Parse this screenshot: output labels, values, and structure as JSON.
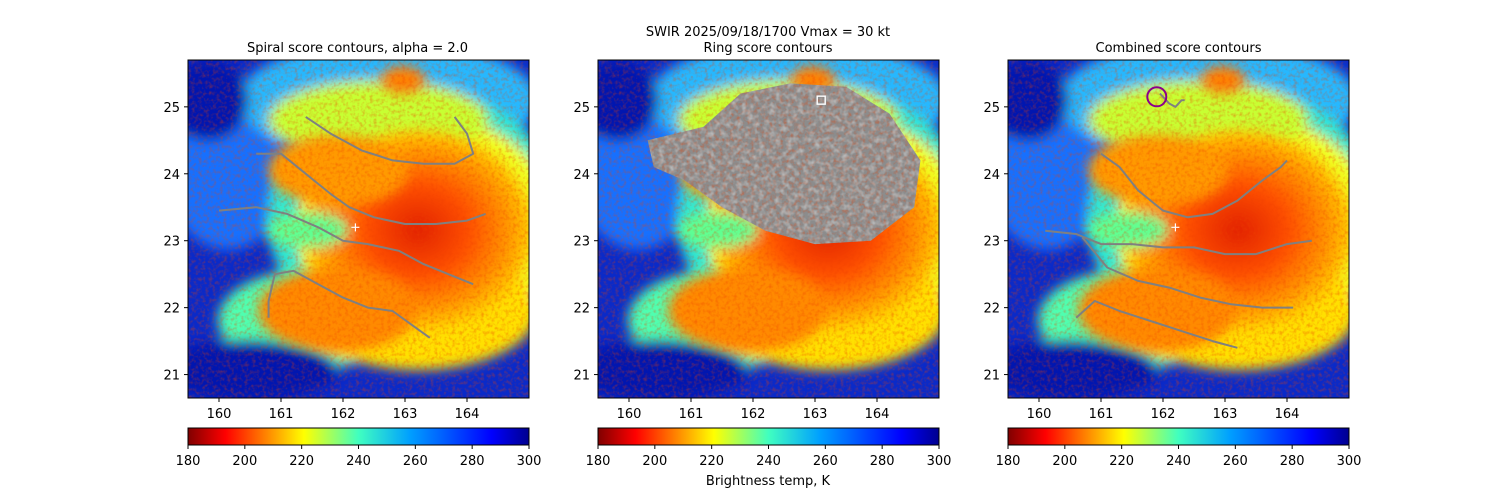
{
  "figure": {
    "suptitle": "SWIR  2025/09/18/1700    Vmax = 30 kt",
    "colorbar_label": "Brightness temp, K"
  },
  "colors": {
    "contour": "#808080",
    "marker": "#ffffff",
    "best_center_circle": "#8b008b",
    "ring_box": "#ffffff"
  },
  "chart_data": [
    {
      "type": "heatmap",
      "title": "Spiral score contours, alpha =  2.0",
      "xlim": [
        159.5,
        165.0
      ],
      "ylim": [
        20.65,
        25.7
      ],
      "xticks": [
        160,
        161,
        162,
        163,
        164
      ],
      "yticks": [
        21,
        22,
        23,
        24,
        25
      ],
      "colorscale": "jet_r",
      "colorbar": {
        "range": [
          180,
          300
        ],
        "ticks": [
          180,
          200,
          220,
          240,
          260,
          280,
          300
        ]
      },
      "markers": [
        {
          "symbol": "+",
          "x": 162.2,
          "y": 23.2
        }
      ],
      "contours": [
        {
          "name": "spiral-arm-1",
          "points": [
            [
              161.4,
              24.85
            ],
            [
              161.8,
              24.6
            ],
            [
              162.3,
              24.35
            ],
            [
              162.8,
              24.2
            ],
            [
              163.3,
              24.15
            ],
            [
              163.8,
              24.15
            ],
            [
              164.1,
              24.3
            ],
            [
              164.0,
              24.6
            ],
            [
              163.8,
              24.85
            ]
          ]
        },
        {
          "name": "spiral-arm-2",
          "points": [
            [
              160.6,
              24.3
            ],
            [
              161.0,
              24.3
            ],
            [
              161.4,
              24.0
            ],
            [
              161.8,
              23.7
            ],
            [
              162.1,
              23.5
            ],
            [
              162.5,
              23.35
            ],
            [
              163.0,
              23.25
            ],
            [
              163.5,
              23.25
            ],
            [
              164.0,
              23.3
            ],
            [
              164.3,
              23.4
            ]
          ]
        },
        {
          "name": "spiral-arm-3",
          "points": [
            [
              160.0,
              23.45
            ],
            [
              160.6,
              23.5
            ],
            [
              161.1,
              23.4
            ],
            [
              161.6,
              23.2
            ],
            [
              162.0,
              23.0
            ],
            [
              162.4,
              22.95
            ],
            [
              162.9,
              22.85
            ],
            [
              163.3,
              22.65
            ],
            [
              163.7,
              22.5
            ],
            [
              164.1,
              22.35
            ]
          ]
        },
        {
          "name": "spiral-arm-4",
          "points": [
            [
              160.8,
              21.85
            ],
            [
              160.8,
              22.1
            ],
            [
              160.9,
              22.5
            ],
            [
              161.2,
              22.55
            ],
            [
              161.6,
              22.35
            ],
            [
              162.0,
              22.15
            ],
            [
              162.4,
              22.0
            ],
            [
              162.8,
              21.95
            ],
            [
              163.1,
              21.75
            ],
            [
              163.4,
              21.55
            ]
          ]
        }
      ]
    },
    {
      "type": "heatmap",
      "title": "Ring score contours",
      "xlim": [
        159.5,
        165.0
      ],
      "ylim": [
        20.65,
        25.7
      ],
      "xticks": [
        160,
        161,
        162,
        163,
        164
      ],
      "yticks": [
        21,
        22,
        23,
        24,
        25
      ],
      "colorscale": "jet_r",
      "colorbar": {
        "range": [
          180,
          300
        ],
        "ticks": [
          180,
          200,
          220,
          240,
          260,
          280,
          300
        ]
      },
      "markers": [
        {
          "symbol": "square",
          "x": 163.1,
          "y": 25.1
        }
      ],
      "ring_region": {
        "points": [
          [
            160.3,
            24.5
          ],
          [
            161.2,
            24.7
          ],
          [
            161.8,
            25.2
          ],
          [
            162.6,
            25.35
          ],
          [
            163.5,
            25.3
          ],
          [
            164.2,
            24.9
          ],
          [
            164.7,
            24.2
          ],
          [
            164.6,
            23.5
          ],
          [
            163.9,
            23.0
          ],
          [
            163.0,
            22.95
          ],
          [
            162.2,
            23.15
          ],
          [
            161.5,
            23.5
          ],
          [
            160.9,
            23.9
          ],
          [
            160.4,
            24.1
          ]
        ]
      }
    },
    {
      "type": "heatmap",
      "title": "Combined score contours",
      "xlim": [
        159.5,
        165.0
      ],
      "ylim": [
        20.65,
        25.7
      ],
      "xticks": [
        160,
        161,
        162,
        163,
        164
      ],
      "yticks": [
        21,
        22,
        23,
        24,
        25
      ],
      "colorscale": "jet_r",
      "colorbar": {
        "range": [
          180,
          300
        ],
        "ticks": [
          180,
          200,
          220,
          240,
          260,
          280,
          300
        ]
      },
      "markers": [
        {
          "symbol": "+",
          "x": 162.2,
          "y": 23.2
        },
        {
          "symbol": "circle",
          "x": 161.9,
          "y": 25.15
        }
      ],
      "contours": [
        {
          "name": "spiral-arm-1",
          "points": [
            [
              161.0,
              24.3
            ],
            [
              161.3,
              24.1
            ],
            [
              161.6,
              23.75
            ],
            [
              162.0,
              23.45
            ],
            [
              162.4,
              23.35
            ],
            [
              162.8,
              23.4
            ],
            [
              163.2,
              23.6
            ],
            [
              163.6,
              23.9
            ],
            [
              163.9,
              24.1
            ],
            [
              164.0,
              24.2
            ]
          ]
        },
        {
          "name": "spiral-arm-2",
          "points": [
            [
              160.1,
              23.15
            ],
            [
              160.6,
              23.1
            ],
            [
              161.0,
              22.95
            ],
            [
              161.5,
              22.95
            ],
            [
              162.0,
              22.9
            ],
            [
              162.5,
              22.9
            ],
            [
              163.0,
              22.8
            ],
            [
              163.5,
              22.8
            ],
            [
              164.0,
              22.95
            ],
            [
              164.4,
              23.0
            ]
          ]
        },
        {
          "name": "spiral-arm-3",
          "points": [
            [
              160.7,
              23.05
            ],
            [
              161.1,
              22.6
            ],
            [
              161.6,
              22.4
            ],
            [
              162.1,
              22.3
            ],
            [
              162.6,
              22.15
            ],
            [
              163.1,
              22.05
            ],
            [
              163.6,
              22.0
            ],
            [
              164.1,
              22.0
            ]
          ]
        },
        {
          "name": "spiral-arm-4",
          "points": [
            [
              160.6,
              21.85
            ],
            [
              160.9,
              22.1
            ],
            [
              161.3,
              21.95
            ],
            [
              161.8,
              21.8
            ],
            [
              162.3,
              21.65
            ],
            [
              162.8,
              21.5
            ],
            [
              163.2,
              21.4
            ]
          ]
        },
        {
          "name": "spiral-arm-5",
          "points": [
            [
              161.95,
              25.2
            ],
            [
              162.1,
              25.05
            ],
            [
              162.2,
              25.0
            ],
            [
              162.3,
              25.1
            ],
            [
              162.35,
              25.1
            ]
          ]
        }
      ]
    }
  ]
}
